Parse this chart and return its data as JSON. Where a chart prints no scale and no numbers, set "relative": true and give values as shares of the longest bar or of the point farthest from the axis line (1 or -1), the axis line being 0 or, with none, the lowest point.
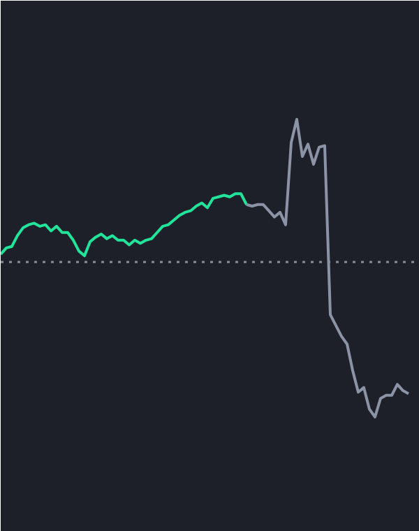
{
  "chart_data": {
    "type": "line",
    "relative": true,
    "grid": false,
    "marker": "none",
    "line_style": "solid",
    "categories": [
      null,
      null,
      null,
      null,
      null,
      null,
      null,
      null,
      null,
      null,
      null,
      null,
      null,
      null,
      null,
      null,
      null,
      null,
      null,
      null,
      null,
      null,
      null,
      null,
      null,
      null,
      null,
      null,
      null,
      null,
      null,
      null,
      null,
      null,
      null,
      null,
      null,
      null,
      null,
      null,
      null,
      null,
      null,
      null,
      null,
      null,
      null,
      null,
      null,
      null,
      null,
      null,
      null,
      null,
      null,
      null,
      null,
      null,
      null,
      null,
      null,
      null,
      null,
      null,
      null,
      null,
      null,
      null,
      null,
      null,
      null,
      null,
      null,
      null
    ],
    "series": [
      {
        "color": "#22e39a",
        "values": [
          0.05,
          0.09,
          0.1,
          0.17,
          0.22,
          0.24,
          0.25,
          0.23,
          0.24,
          0.2,
          0.23,
          0.19,
          0.19,
          0.14,
          0.07,
          0.04,
          0.13,
          0.16,
          0.18,
          0.15,
          0.17,
          0.14,
          0.14,
          0.11,
          0.14,
          0.12,
          0.14,
          0.15,
          0.19,
          0.23,
          0.24,
          0.27,
          0.3,
          0.32,
          0.33,
          0.36,
          0.38,
          0.35,
          0.41,
          0.42,
          0.43,
          0.42,
          0.44,
          0.44,
          0.37,
          null,
          null,
          null,
          null,
          null,
          null,
          null,
          null,
          null,
          null,
          null,
          null,
          null,
          null,
          null,
          null,
          null,
          null,
          null,
          null,
          null,
          null,
          null,
          null,
          null,
          null,
          null,
          null,
          null
        ]
      },
      {
        "color": "#8a94a6",
        "values": [
          null,
          null,
          null,
          null,
          null,
          null,
          null,
          null,
          null,
          null,
          null,
          null,
          null,
          null,
          null,
          null,
          null,
          null,
          null,
          null,
          null,
          null,
          null,
          null,
          null,
          null,
          null,
          null,
          null,
          null,
          null,
          null,
          null,
          null,
          null,
          null,
          null,
          null,
          null,
          null,
          null,
          null,
          null,
          null,
          0.37,
          0.36,
          0.37,
          0.37,
          0.33,
          0.29,
          0.32,
          0.24,
          0.77,
          0.92,
          0.68,
          0.76,
          0.63,
          0.74,
          0.75,
          -0.34,
          -0.41,
          -0.48,
          -0.53,
          -0.7,
          -0.84,
          -0.81,
          -0.95,
          -1.0,
          -0.88,
          -0.86,
          -0.86,
          -0.79,
          -0.83,
          -0.85
        ]
      }
    ],
    "ref_lines": [
      {
        "axis": "y",
        "value": 0,
        "color": "#8a8f99",
        "line_style": "dotted"
      }
    ]
  }
}
